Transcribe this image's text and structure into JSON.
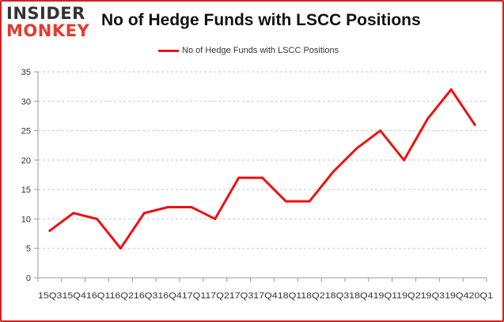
{
  "logo": {
    "top": "INSIDER",
    "bottom": "MONKEY"
  },
  "chart_data": {
    "type": "line",
    "title": "No of Hedge Funds with LSCC Positions",
    "xlabel": "",
    "ylabel": "",
    "x": [
      "15Q3",
      "15Q4",
      "16Q1",
      "16Q2",
      "16Q3",
      "16Q4",
      "17Q1",
      "17Q2",
      "17Q3",
      "17Q4",
      "18Q1",
      "18Q2",
      "18Q3",
      "18Q4",
      "19Q1",
      "19Q2",
      "19Q3",
      "19Q4",
      "20Q1"
    ],
    "x_tick_text": "15Q315Q416Q116Q216Q316Q417Q117Q217Q317Q418Q118Q218Q318Q419Q119Q219Q319Q420Q1",
    "series": [
      {
        "name": "No of Hedge Funds with LSCC Positions",
        "values": [
          8,
          11,
          10,
          5,
          11,
          12,
          12,
          10,
          17,
          17,
          13,
          13,
          18,
          22,
          25,
          20,
          27,
          32,
          26
        ]
      }
    ],
    "ylim": [
      0,
      35
    ],
    "yticks": [
      0,
      5,
      10,
      15,
      20,
      25,
      30,
      35
    ],
    "grid": "y-dashed",
    "legend": "top-center",
    "line_color": "#ee1111"
  }
}
